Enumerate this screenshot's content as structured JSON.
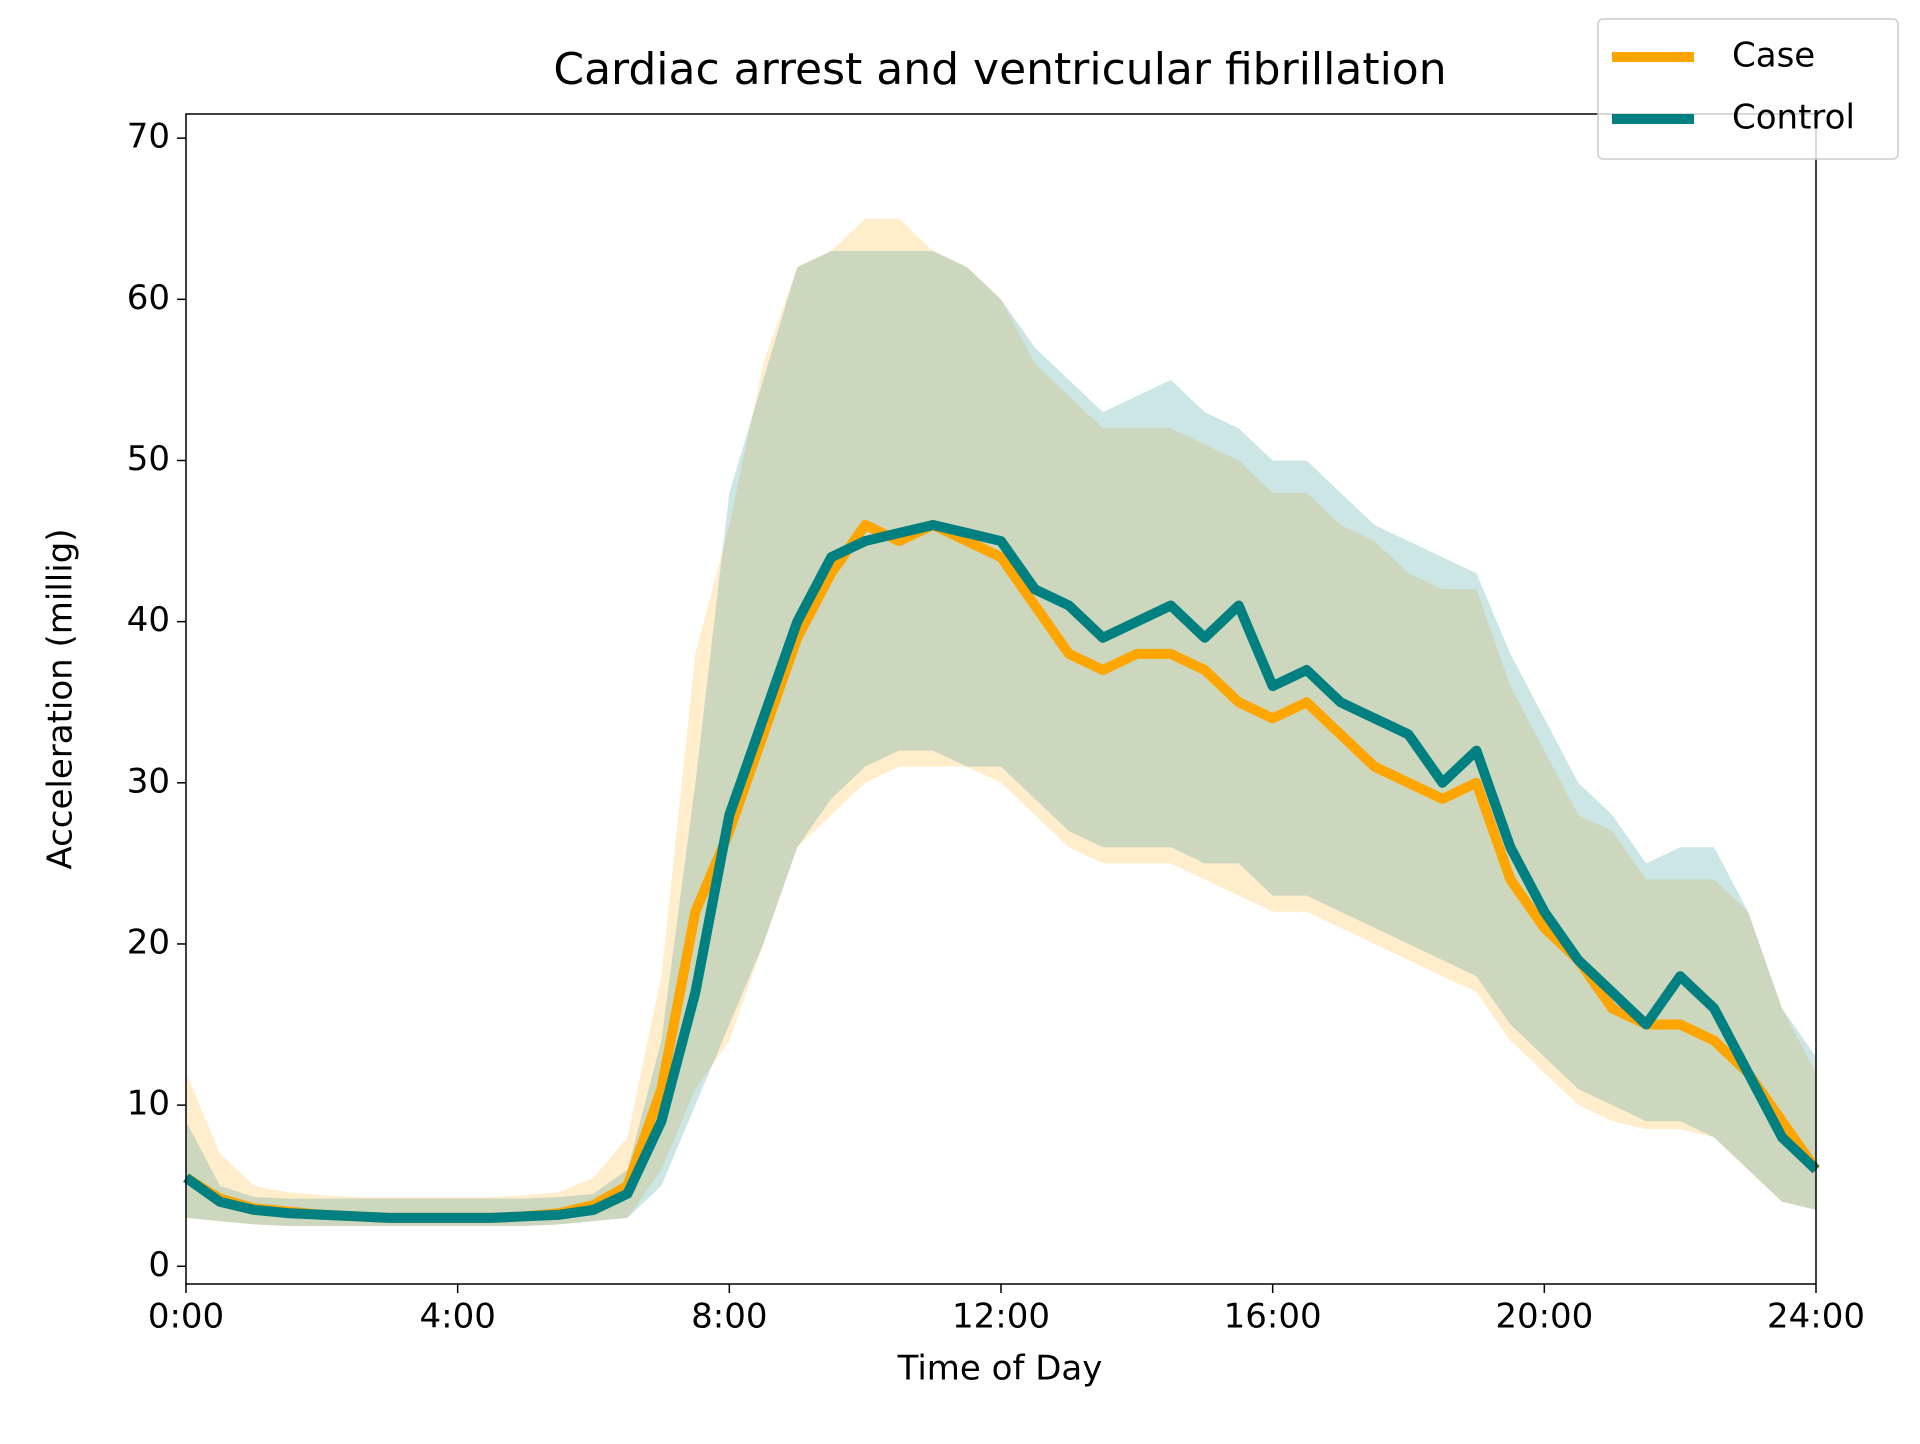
{
  "chart_data": {
    "type": "line",
    "title": "Cardiac arrest and ventricular fibrillation",
    "x_label": "Time of Day",
    "y_label": "Acceleration (millig)",
    "x": [
      0,
      0.5,
      1,
      1.5,
      2,
      2.5,
      3,
      3.5,
      4,
      4.5,
      5,
      5.5,
      6,
      6.5,
      7,
      7.5,
      8,
      8.5,
      9,
      9.5,
      10,
      10.5,
      11,
      11.5,
      12,
      12.5,
      13,
      13.5,
      14,
      14.5,
      15,
      15.5,
      16,
      16.5,
      17,
      17.5,
      18,
      18.5,
      19,
      19.5,
      20,
      20.5,
      21,
      21.5,
      22,
      22.5,
      23,
      23.5,
      24
    ],
    "xlim": [
      0,
      24
    ],
    "xticks": [
      {
        "value": 0,
        "label": "0:00"
      },
      {
        "value": 4,
        "label": "4:00"
      },
      {
        "value": 8,
        "label": "8:00"
      },
      {
        "value": 12,
        "label": "12:00"
      },
      {
        "value": 16,
        "label": "16:00"
      },
      {
        "value": 20,
        "label": "20:00"
      },
      {
        "value": 24,
        "label": "24:00"
      }
    ],
    "ylim": [
      -1.1,
      71.5
    ],
    "yticks": [
      0,
      10,
      20,
      30,
      40,
      50,
      60,
      70
    ],
    "legend": "upper right",
    "band_opacity": 0.2,
    "series": [
      {
        "name": "Case",
        "color": "#ffa500",
        "values": [
          5.5,
          4.2,
          3.6,
          3.4,
          3.2,
          3.1,
          3.0,
          3.0,
          3.0,
          3.0,
          3.1,
          3.3,
          3.8,
          5,
          11,
          22,
          27,
          33,
          39,
          43,
          46,
          45,
          46,
          45,
          44,
          41,
          38,
          37,
          38,
          38,
          37,
          35,
          34,
          35,
          33,
          31,
          30,
          29,
          30,
          24,
          21,
          19,
          16,
          15,
          15,
          14,
          12,
          9,
          6
        ],
        "upper": [
          12,
          7,
          5,
          4.6,
          4.4,
          4.3,
          4.3,
          4.3,
          4.3,
          4.3,
          4.4,
          4.6,
          5.5,
          8,
          18,
          38,
          46,
          56,
          62,
          63,
          65,
          65,
          63,
          62,
          60,
          56,
          54,
          52,
          52,
          52,
          51,
          50,
          48,
          48,
          46,
          45,
          43,
          42,
          42,
          36,
          32,
          28,
          27,
          24,
          24,
          24,
          22,
          16,
          12
        ],
        "lower": [
          3,
          2.8,
          2.6,
          2.5,
          2.5,
          2.5,
          2.5,
          2.5,
          2.5,
          2.5,
          2.5,
          2.6,
          2.8,
          3,
          6,
          11,
          14,
          20,
          26,
          28,
          30,
          31,
          31,
          31,
          30,
          28,
          26,
          25,
          25,
          25,
          24,
          23,
          22,
          22,
          21,
          20,
          19,
          18,
          17,
          14,
          12,
          10,
          9,
          8.5,
          8.5,
          8,
          6,
          4,
          3.5
        ]
      },
      {
        "name": "Control",
        "color": "#008080",
        "values": [
          5.5,
          4,
          3.5,
          3.3,
          3.2,
          3.1,
          3.0,
          3.0,
          3.0,
          3.0,
          3.1,
          3.2,
          3.5,
          4.5,
          9,
          17,
          28,
          34,
          40,
          44,
          45,
          45.5,
          46,
          45.5,
          45,
          42,
          41,
          39,
          40,
          41,
          39,
          41,
          36,
          37,
          35,
          34,
          33,
          30,
          32,
          26,
          22,
          19,
          17,
          15,
          18,
          16,
          12,
          8,
          6
        ],
        "upper": [
          9,
          5,
          4.3,
          4.2,
          4.2,
          4.2,
          4.2,
          4.2,
          4.2,
          4.2,
          4.2,
          4.3,
          4.5,
          6,
          14,
          30,
          48,
          55,
          62,
          63,
          63,
          63,
          63,
          62,
          60,
          57,
          55,
          53,
          54,
          55,
          53,
          52,
          50,
          50,
          48,
          46,
          45,
          44,
          43,
          38,
          34,
          30,
          28,
          25,
          26,
          26,
          22,
          16,
          13
        ],
        "lower": [
          3,
          2.8,
          2.6,
          2.5,
          2.5,
          2.5,
          2.5,
          2.5,
          2.5,
          2.5,
          2.5,
          2.6,
          2.8,
          3,
          5,
          10,
          15,
          20,
          26,
          29,
          31,
          32,
          32,
          31,
          31,
          29,
          27,
          26,
          26,
          26,
          25,
          25,
          23,
          23,
          22,
          21,
          20,
          19,
          18,
          15,
          13,
          11,
          10,
          9,
          9,
          8,
          6,
          4,
          3.5
        ]
      }
    ]
  }
}
